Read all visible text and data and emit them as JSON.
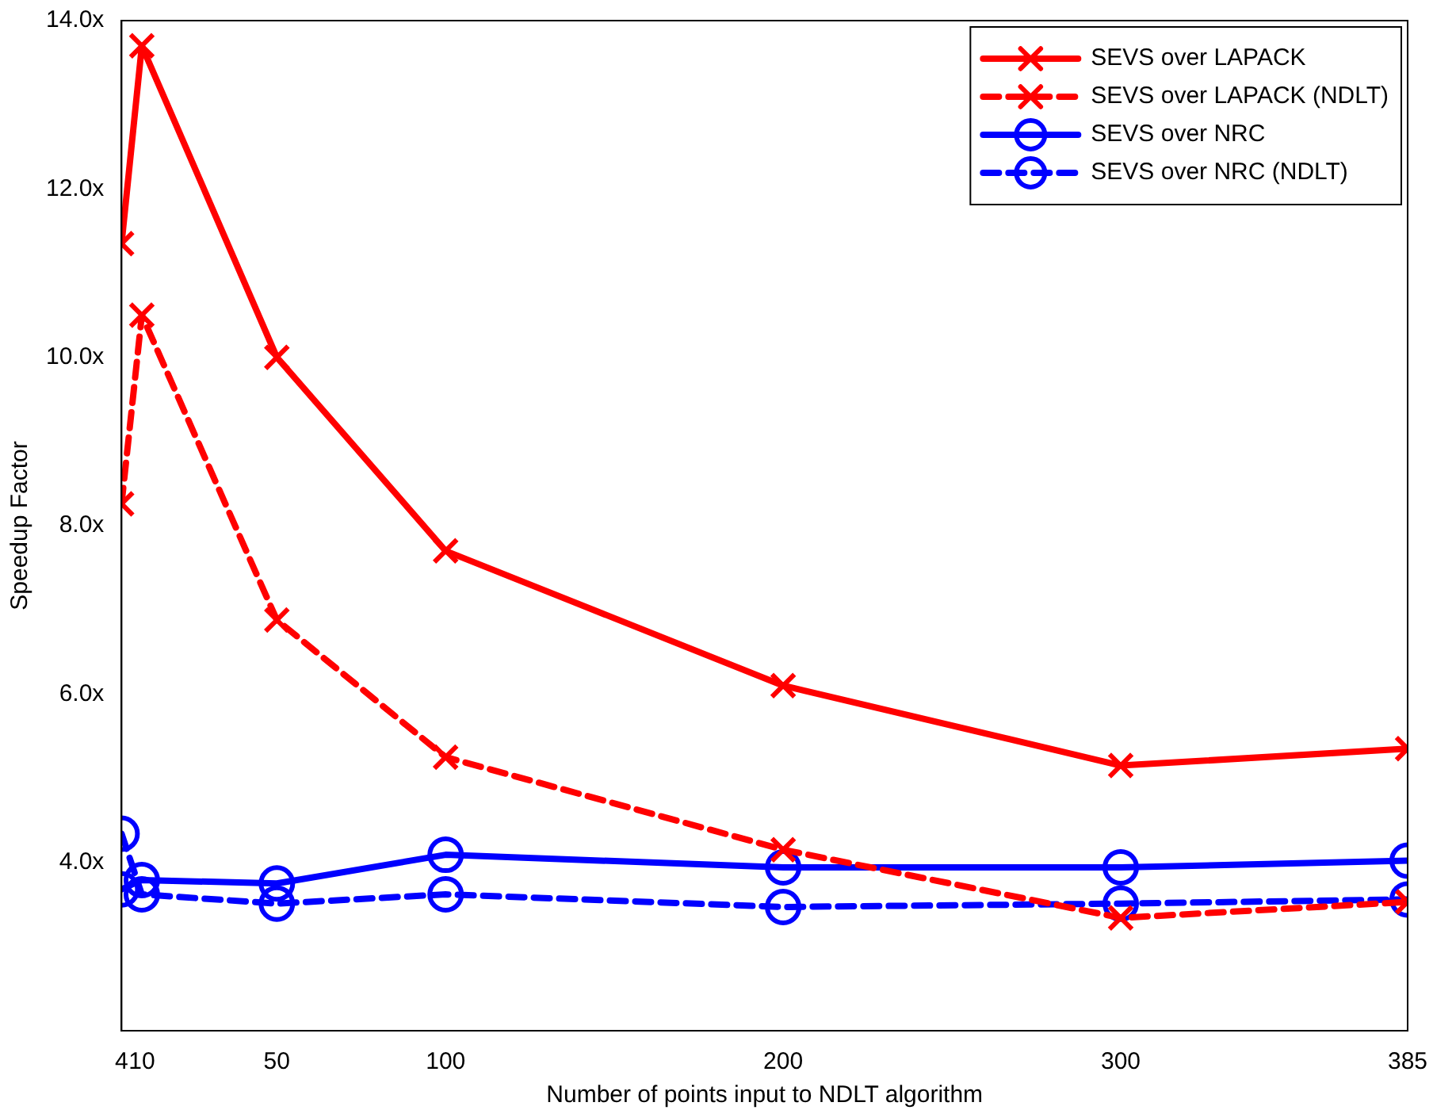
{
  "chart_data": {
    "type": "line",
    "xlabel": "Number of points input to NDLT algorithm",
    "ylabel": "Speedup Factor",
    "x": [
      4,
      10,
      50,
      100,
      200,
      300,
      385
    ],
    "xlim": [
      4,
      385
    ],
    "xticks": [
      4,
      10,
      50,
      100,
      200,
      300,
      385
    ],
    "ylim": [
      2,
      14
    ],
    "yticks": [
      {
        "value": 4,
        "label": "4.0x"
      },
      {
        "value": 6,
        "label": "6.0x"
      },
      {
        "value": 8,
        "label": "8.0x"
      },
      {
        "value": 10,
        "label": "10.0x"
      },
      {
        "value": 12,
        "label": "12.0x"
      },
      {
        "value": 14,
        "label": "14.0x"
      }
    ],
    "legend": "top right",
    "grid": false,
    "series": [
      {
        "name": "SEVS over LAPACK",
        "color": "#ff0000",
        "marker": "cross",
        "line_style": "solid",
        "values": [
          11.35,
          13.7,
          10.0,
          7.7,
          6.1,
          5.15,
          5.35
        ]
      },
      {
        "name": "SEVS over LAPACK (NDLT)",
        "color": "#ff0000",
        "marker": "cross",
        "line_style": "dashed",
        "values": [
          8.26,
          10.5,
          6.88,
          5.25,
          4.15,
          3.34,
          3.53
        ]
      },
      {
        "name": "SEVS over NRC",
        "color": "#0000ff",
        "marker": "circle",
        "line_style": "solid",
        "values": [
          3.68,
          3.79,
          3.75,
          4.09,
          3.94,
          3.94,
          4.02
        ]
      },
      {
        "name": "SEVS over NRC (NDLT)",
        "color": "#0000ff",
        "marker": "circle",
        "line_style": "dashed",
        "values": [
          4.34,
          3.62,
          3.51,
          3.62,
          3.47,
          3.51,
          3.56
        ]
      }
    ]
  }
}
